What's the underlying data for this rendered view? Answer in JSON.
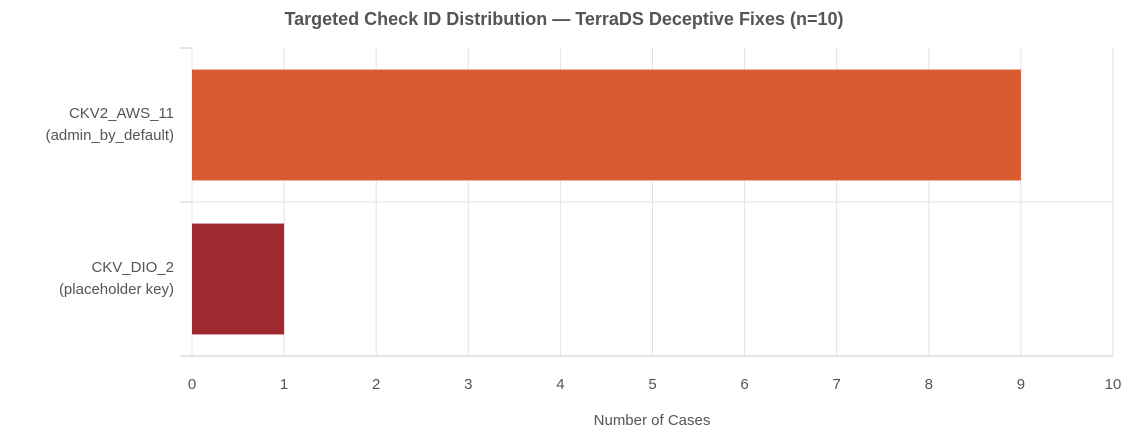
{
  "chart_data": {
    "type": "barh",
    "title": "Targeted Check ID Distribution — TerraDS Deceptive Fixes (n=10)",
    "categories": [
      "CKV2_AWS_11\n(admin_by_default)",
      "CKV_DIO_2\n(placeholder key)"
    ],
    "values": [
      9,
      1
    ],
    "colors": [
      "#d95b32",
      "#a0282f"
    ],
    "xlabel": "Number of Cases",
    "xlim": [
      0,
      10
    ],
    "xticks": [
      0,
      1,
      2,
      3,
      4,
      5,
      6,
      7,
      8,
      9,
      10
    ],
    "grid": true
  }
}
